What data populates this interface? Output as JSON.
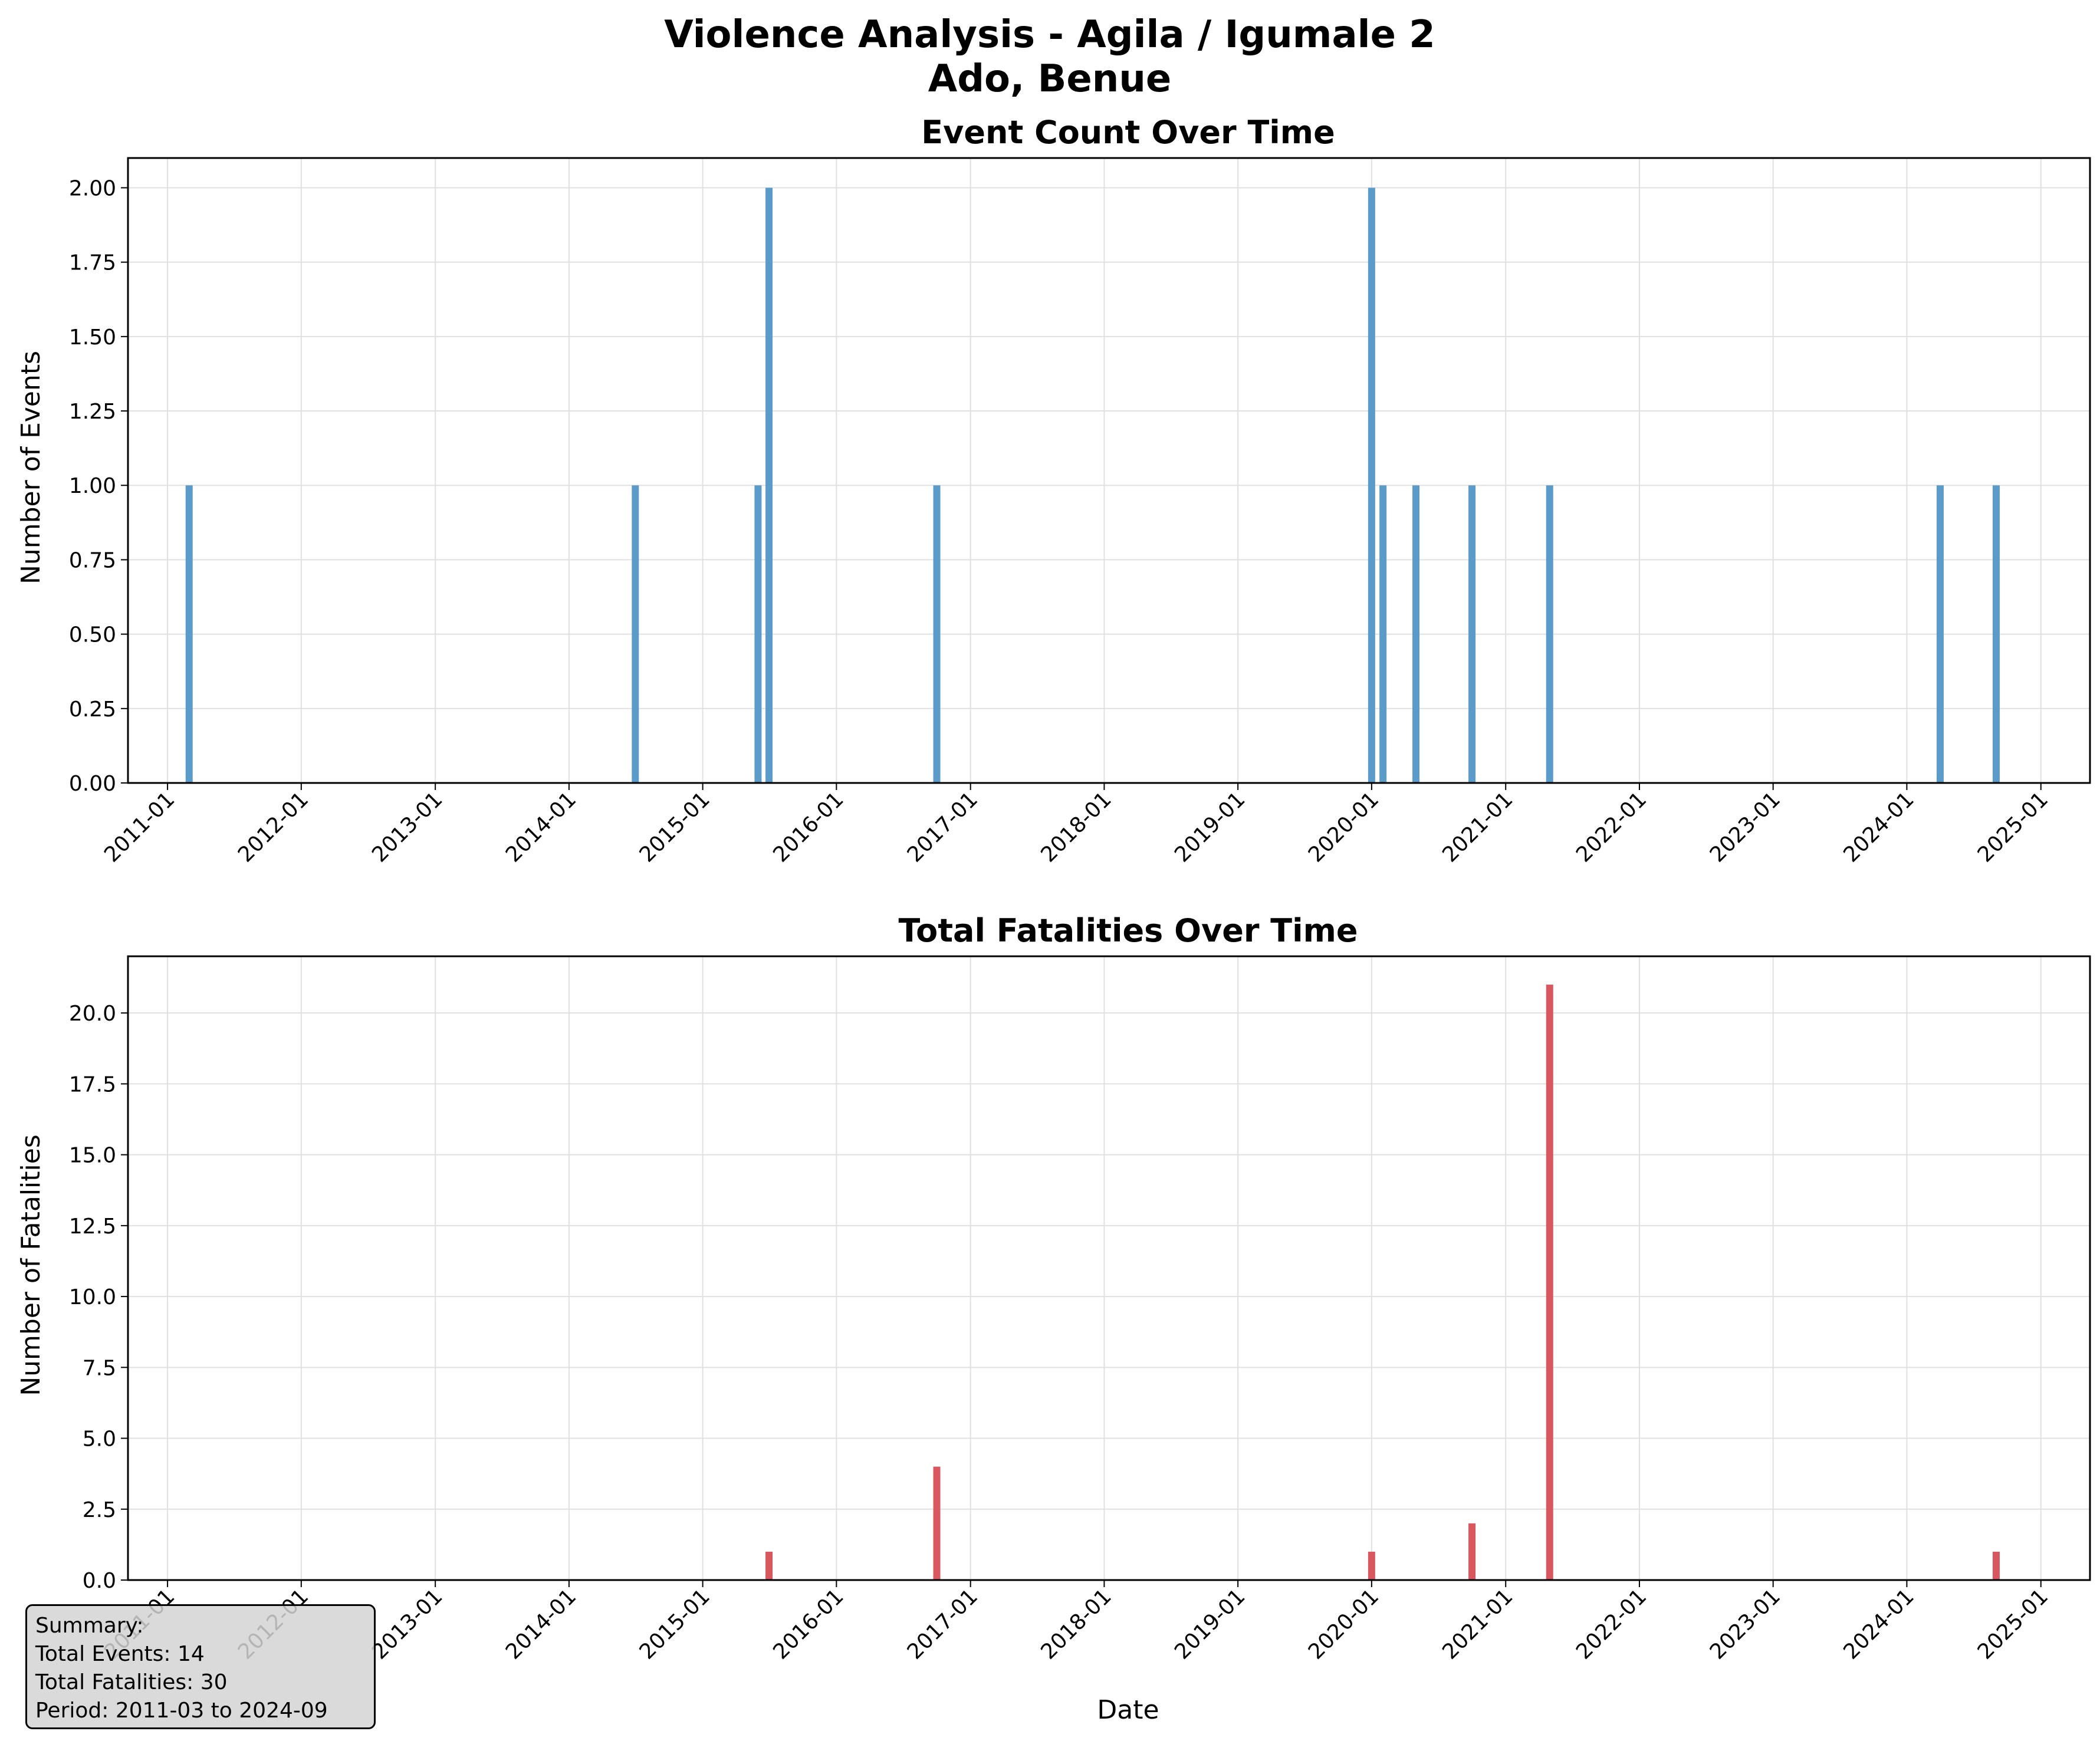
{
  "figure": {
    "title_line1": "Violence Analysis - Agila / Igumale 2",
    "title_line2": "Ado, Benue"
  },
  "colors": {
    "events_bar": "#5b9bc9",
    "fatalities_bar": "#d9585f",
    "grid": "#e0e0e0"
  },
  "chart_data": [
    {
      "type": "bar",
      "title": "Event Count Over Time",
      "xlabel": "",
      "ylabel": "Number of Events",
      "ylim": [
        0,
        2.1
      ],
      "yticks": [
        "0.00",
        "0.25",
        "0.50",
        "0.75",
        "1.00",
        "1.25",
        "1.50",
        "1.75",
        "2.00"
      ],
      "xticks": [
        "2011-01",
        "2012-01",
        "2013-01",
        "2014-01",
        "2015-01",
        "2016-01",
        "2017-01",
        "2018-01",
        "2019-01",
        "2020-01",
        "2021-01",
        "2022-01",
        "2023-01",
        "2024-01",
        "2025-01"
      ],
      "grid": true,
      "x": [
        "2011-03",
        "2014-07",
        "2015-06",
        "2015-07",
        "2016-10",
        "2020-01",
        "2020-02",
        "2020-05",
        "2020-10",
        "2021-05",
        "2024-04",
        "2024-09"
      ],
      "values": [
        1,
        1,
        1,
        2,
        1,
        2,
        1,
        1,
        1,
        1,
        1,
        1
      ]
    },
    {
      "type": "bar",
      "title": "Total Fatalities Over Time",
      "xlabel": "Date",
      "ylabel": "Number of Fatalities",
      "ylim": [
        0,
        22
      ],
      "yticks": [
        "0.0",
        "2.5",
        "5.0",
        "7.5",
        "10.0",
        "12.5",
        "15.0",
        "17.5",
        "20.0"
      ],
      "xticks": [
        "2011-01",
        "2012-01",
        "2013-01",
        "2014-01",
        "2015-01",
        "2016-01",
        "2017-01",
        "2018-01",
        "2019-01",
        "2020-01",
        "2021-01",
        "2022-01",
        "2023-01",
        "2024-01",
        "2025-01"
      ],
      "grid": true,
      "x": [
        "2015-07",
        "2016-10",
        "2020-01",
        "2020-10",
        "2021-05",
        "2024-09"
      ],
      "values": [
        1,
        4,
        1,
        2,
        21,
        1
      ]
    }
  ],
  "summary": {
    "heading": "Summary:",
    "total_events": "Total Events: 14",
    "total_fatalities": "Total Fatalities: 30",
    "period": "Period: 2011-03 to 2024-09"
  }
}
